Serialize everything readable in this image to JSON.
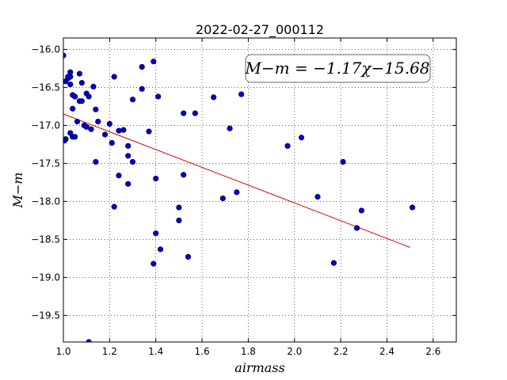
{
  "chart_data": {
    "type": "scatter",
    "title": "2022-02-27_000112",
    "xlabel": "airmass",
    "ylabel": "M−m",
    "xlim": [
      1.0,
      2.7
    ],
    "ylim": [
      -19.85,
      -15.85
    ],
    "x_ticks": [
      1.0,
      1.2,
      1.4,
      1.6,
      1.8,
      2.0,
      2.2,
      2.4,
      2.6
    ],
    "x_tick_labels": [
      "1.0",
      "1.2",
      "1.4",
      "1.6",
      "1.8",
      "2.0",
      "2.2",
      "2.4",
      "2.6"
    ],
    "y_ticks": [
      -16.0,
      -16.5,
      -17.0,
      -17.5,
      -18.0,
      -18.5,
      -19.0,
      -19.5
    ],
    "y_tick_labels": [
      "−16.0",
      "−16.5",
      "−17.0",
      "−17.5",
      "−18.0",
      "−18.5",
      "−19.0",
      "−19.5"
    ],
    "grid": true,
    "annotation": "M−m = −1.17χ−15.68",
    "colors": {
      "points": "#0000cc",
      "fit": "#cc0000"
    },
    "fit": {
      "slope": -1.17,
      "intercept": -15.68,
      "x_range": [
        1.0,
        2.5
      ]
    },
    "x": [
      1.0,
      1.01,
      1.005,
      1.01,
      1.02,
      1.03,
      1.03,
      1.02,
      1.03,
      1.04,
      1.05,
      1.04,
      1.06,
      1.07,
      1.08,
      1.09,
      1.1,
      1.11,
      1.03,
      1.04,
      1.05,
      1.08,
      1.1,
      1.12,
      1.14,
      1.15,
      1.13,
      1.14,
      1.18,
      1.2,
      1.21,
      1.24,
      1.26,
      1.22,
      1.24,
      1.28,
      1.28,
      1.3,
      1.28,
      1.22,
      1.3,
      1.34,
      1.34,
      1.39,
      1.41,
      1.37,
      1.4,
      1.4,
      1.42,
      1.39,
      1.52,
      1.57,
      1.52,
      1.5,
      1.5,
      1.54,
      1.65,
      1.72,
      1.77,
      1.69,
      1.75,
      1.97,
      2.03,
      2.1,
      2.21,
      2.17,
      2.27,
      2.29,
      2.51,
      1.11,
      1.07
    ],
    "y": [
      -16.08,
      -17.18,
      -17.2,
      -16.42,
      -16.38,
      -16.3,
      -16.36,
      -16.36,
      -16.46,
      -16.6,
      -16.62,
      -16.78,
      -16.95,
      -16.68,
      -16.44,
      -17.0,
      -16.58,
      -16.62,
      -17.1,
      -17.15,
      -17.15,
      -16.68,
      -17.02,
      -17.05,
      -16.79,
      -16.95,
      -16.49,
      -17.48,
      -17.12,
      -16.98,
      -17.23,
      -17.07,
      -17.06,
      -18.07,
      -17.66,
      -17.4,
      -17.27,
      -17.48,
      -17.77,
      -16.36,
      -16.66,
      -16.52,
      -16.23,
      -16.16,
      -16.62,
      -17.08,
      -17.7,
      -18.42,
      -18.63,
      -18.82,
      -16.84,
      -16.84,
      -17.65,
      -18.08,
      -18.25,
      -18.73,
      -16.63,
      -17.04,
      -16.59,
      -17.96,
      -17.88,
      -17.27,
      -17.16,
      -17.94,
      -17.48,
      -18.81,
      -18.35,
      -18.12,
      -18.08,
      -19.85,
      -16.32
    ]
  }
}
